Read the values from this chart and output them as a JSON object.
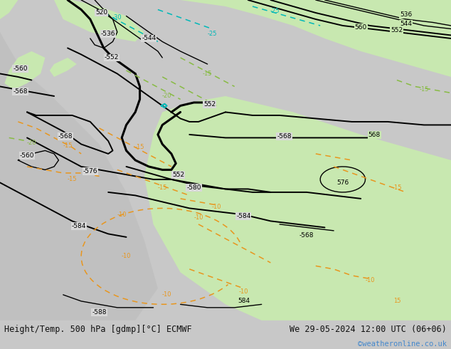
{
  "title_left": "Height/Temp. 500 hPa [gdmp][°C] ECMWF",
  "title_right": "We 29-05-2024 12:00 UTC (06+06)",
  "watermark": "©weatheronline.co.uk",
  "bg_color": "#c8c8c8",
  "map_bg_color": "#d8d8d8",
  "green_light": "#c8e8b0",
  "bottom_bar_color": "#e8e8e8",
  "fig_width": 6.34,
  "fig_height": 4.9,
  "dpi": 100,
  "title_fontsize": 8.5,
  "watermark_fontsize": 7.5,
  "watermark_color": "#4488cc",
  "text_color": "#111111",
  "label_fontsize": 6.5,
  "orange": "#e8961e",
  "cyan": "#00b8b8",
  "lime": "#88bb44"
}
